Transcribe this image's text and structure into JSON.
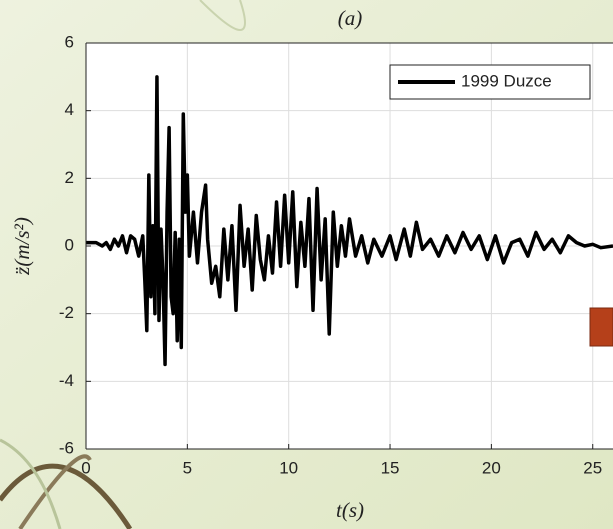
{
  "chart_data": {
    "type": "line",
    "title": "(a)",
    "xlabel": "t(s)",
    "ylabel": "z̈(m/s²)",
    "x": [
      0,
      0.5,
      0.8,
      1.0,
      1.2,
      1.4,
      1.6,
      1.8,
      2.0,
      2.2,
      2.4,
      2.6,
      2.8,
      2.9,
      3.0,
      3.1,
      3.2,
      3.3,
      3.4,
      3.5,
      3.6,
      3.7,
      3.8,
      3.9,
      4.0,
      4.1,
      4.2,
      4.3,
      4.4,
      4.5,
      4.6,
      4.7,
      4.8,
      4.9,
      5.0,
      5.1,
      5.3,
      5.5,
      5.7,
      5.9,
      6.0,
      6.2,
      6.4,
      6.6,
      6.8,
      7.0,
      7.2,
      7.4,
      7.6,
      7.8,
      8.0,
      8.2,
      8.4,
      8.6,
      8.8,
      9.0,
      9.2,
      9.4,
      9.6,
      9.8,
      10.0,
      10.2,
      10.4,
      10.6,
      10.8,
      11.0,
      11.2,
      11.4,
      11.6,
      11.8,
      12.0,
      12.2,
      12.4,
      12.6,
      12.8,
      13.0,
      13.3,
      13.6,
      13.9,
      14.2,
      14.6,
      15.0,
      15.3,
      15.7,
      16.0,
      16.3,
      16.6,
      17.0,
      17.4,
      17.8,
      18.2,
      18.6,
      19.0,
      19.4,
      19.8,
      20.2,
      20.6,
      21.0,
      21.4,
      21.8,
      22.2,
      22.6,
      23.0,
      23.4,
      23.8,
      24.2,
      24.6,
      25.0,
      25.4,
      26
    ],
    "series": [
      {
        "name": "1999 Duzce",
        "color": "#000000",
        "values": [
          0.1,
          0.1,
          0,
          0.1,
          -0.1,
          0.2,
          0,
          0.3,
          -0.2,
          0.3,
          0.2,
          -0.3,
          0.3,
          -1.0,
          -2.5,
          2.1,
          -1.5,
          0.6,
          -2.0,
          5.0,
          -2.2,
          0.5,
          -1.0,
          -3.5,
          1.0,
          3.5,
          -1.5,
          -2.0,
          0.4,
          -2.8,
          0.2,
          -3.0,
          3.9,
          1.0,
          2.1,
          -0.3,
          1.0,
          -0.5,
          1.0,
          1.8,
          0.2,
          -1.1,
          -0.6,
          -1.5,
          0.5,
          -1.0,
          0.6,
          -1.9,
          1.2,
          -0.6,
          0.5,
          -1.3,
          0.9,
          -0.4,
          -1.0,
          0.3,
          -0.8,
          1.3,
          -0.6,
          1.5,
          -0.5,
          1.6,
          -1.2,
          0.7,
          -0.6,
          1.4,
          -1.9,
          1.7,
          -1.0,
          0.8,
          -2.6,
          1.0,
          -0.6,
          0.6,
          -0.3,
          0.8,
          -0.3,
          0.3,
          -0.5,
          0.2,
          -0.3,
          0.3,
          -0.4,
          0.5,
          -0.3,
          0.7,
          -0.1,
          0.2,
          -0.3,
          0.3,
          -0.2,
          0.4,
          -0.1,
          0.3,
          -0.4,
          0.3,
          -0.5,
          0.1,
          0.2,
          -0.3,
          0.4,
          -0.1,
          0.2,
          -0.2,
          0.3,
          0.1,
          0,
          0.05,
          -0.05,
          0
        ]
      }
    ],
    "xlim": [
      0,
      26
    ],
    "ylim": [
      -6,
      6
    ],
    "xticks": [
      0,
      5,
      10,
      15,
      20,
      25
    ],
    "yticks": [
      -6,
      -4,
      -2,
      0,
      2,
      4,
      6
    ],
    "grid": true,
    "legend": "upper right"
  }
}
